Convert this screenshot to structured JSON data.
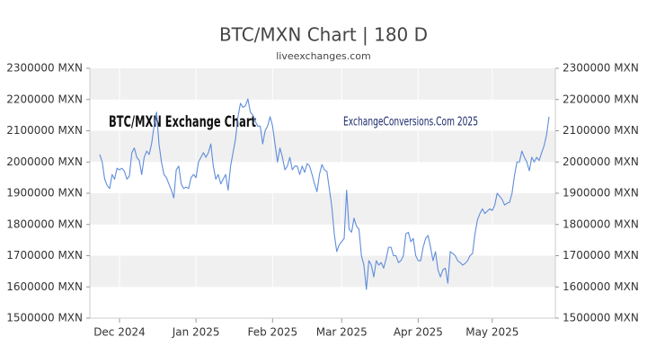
{
  "chart_data": {
    "type": "line",
    "title": "BTC/MXN Chart | 180 D",
    "subtitle": "liveexchanges.com",
    "annotations": [
      "BTC/MXN Exchange Chart",
      "ExchangeConversions.Com 2025"
    ],
    "color": "#5f8ddb",
    "grid": true,
    "categories": [
      null,
      null,
      null,
      null,
      null,
      null,
      null,
      null,
      "Dec 2024",
      null,
      null,
      null,
      null,
      null,
      null,
      null,
      null,
      null,
      null,
      null,
      null,
      null,
      null,
      null,
      null,
      null,
      null,
      null,
      null,
      null,
      null,
      null,
      null,
      null,
      null,
      null,
      null,
      null,
      null,
      "Jan 2025",
      null,
      null,
      null,
      null,
      null,
      null,
      null,
      null,
      null,
      null,
      null,
      null,
      null,
      null,
      null,
      null,
      null,
      null,
      null,
      null,
      null,
      null,
      null,
      null,
      null,
      null,
      null,
      null,
      null,
      null,
      "Feb 2025",
      null,
      null,
      null,
      null,
      null,
      null,
      null,
      null,
      null,
      null,
      null,
      null,
      null,
      null,
      null,
      null,
      null,
      null,
      null,
      null,
      null,
      null,
      null,
      null,
      null,
      null,
      null,
      "Mar 2025",
      null,
      null,
      null,
      null,
      null,
      null,
      null,
      null,
      null,
      null,
      null,
      null,
      null,
      null,
      null,
      null,
      null,
      null,
      null,
      null,
      null,
      null,
      null,
      null,
      null,
      null,
      null,
      null,
      null,
      null,
      "Apr 2025",
      null,
      null,
      null,
      null,
      null,
      null,
      null,
      null,
      null,
      null,
      null,
      null,
      null,
      null,
      null,
      null,
      null,
      null,
      null,
      null,
      null,
      null,
      null,
      null,
      null,
      null,
      null,
      null,
      null,
      "May 2025",
      null,
      null,
      null,
      null,
      null,
      null,
      null,
      null,
      null,
      null,
      null,
      null,
      null,
      null,
      null,
      null,
      null,
      null,
      null,
      null,
      null,
      null,
      null
    ],
    "values": [
      2024000,
      2000000,
      1945000,
      1925000,
      1915000,
      1960000,
      1945000,
      1980000,
      1975000,
      1980000,
      1970000,
      1945000,
      1955000,
      2030000,
      2045000,
      2015000,
      2005000,
      1960000,
      2015000,
      2035000,
      2024000,
      2058000,
      2115000,
      2160000,
      2058000,
      2000000,
      1960000,
      1950000,
      1930000,
      1910000,
      1885000,
      1975000,
      1987000,
      1930000,
      1915000,
      1920000,
      1915000,
      1950000,
      1960000,
      1950000,
      2000000,
      2015000,
      2030000,
      2015000,
      2030000,
      2058000,
      1987000,
      1945000,
      1960000,
      1930000,
      1945000,
      1960000,
      1910000,
      1987000,
      2030000,
      2073000,
      2145000,
      2188000,
      2175000,
      2180000,
      2202000,
      2160000,
      2150000,
      2130000,
      2115000,
      2115000,
      2058000,
      2100000,
      2115000,
      2145000,
      2115000,
      2058000,
      2000000,
      2045000,
      2015000,
      1975000,
      1987000,
      2015000,
      1975000,
      1987000,
      1987000,
      1960000,
      1987000,
      1967000,
      1995000,
      1987000,
      1960000,
      1930000,
      1905000,
      1960000,
      1992000,
      1975000,
      1970000,
      1915000,
      1857000,
      1770000,
      1713000,
      1735000,
      1745000,
      1755000,
      1910000,
      1785000,
      1775000,
      1820000,
      1795000,
      1785000,
      1700000,
      1670000,
      1592000,
      1684000,
      1670000,
      1632000,
      1684000,
      1670000,
      1678000,
      1660000,
      1690000,
      1727000,
      1727000,
      1700000,
      1700000,
      1678000,
      1684000,
      1700000,
      1770000,
      1775000,
      1745000,
      1755000,
      1700000,
      1684000,
      1684000,
      1727000,
      1755000,
      1765000,
      1727000,
      1684000,
      1713000,
      1655000,
      1632000,
      1655000,
      1660000,
      1612000,
      1713000,
      1707000,
      1700000,
      1684000,
      1678000,
      1670000,
      1675000,
      1684000,
      1700000,
      1707000,
      1770000,
      1815000,
      1835000,
      1850000,
      1835000,
      1843000,
      1850000,
      1845000,
      1862000,
      1900000,
      1890000,
      1880000,
      1862000,
      1868000,
      1871000,
      1900000,
      1957000,
      2000000,
      2000000,
      2035000,
      2015000,
      2000000,
      1972000,
      2015000,
      2000000,
      2015000,
      2005000,
      2030000,
      2052000,
      2087000,
      2145000
    ],
    "ylim": [
      1500000,
      2300000
    ],
    "yticks": [
      {
        "value": 1500000,
        "label": "1500000 MXN"
      },
      {
        "value": 1600000,
        "label": "1600000 MXN"
      },
      {
        "value": 1700000,
        "label": "1700000 MXN"
      },
      {
        "value": 1800000,
        "label": "1800000 MXN"
      },
      {
        "value": 1900000,
        "label": "1900000 MXN"
      },
      {
        "value": 2000000,
        "label": "2000000 MXN"
      },
      {
        "value": 2100000,
        "label": "2100000 MXN"
      },
      {
        "value": 2200000,
        "label": "2200000 MXN"
      },
      {
        "value": 2300000,
        "label": "2300000 MXN"
      }
    ],
    "y2lim": [
      1500000,
      2300000
    ],
    "y2ticks": [
      {
        "value": 1500000,
        "label": "1500000 MXN"
      },
      {
        "value": 1600000,
        "label": "1600000 MXN"
      },
      {
        "value": 1700000,
        "label": "1700000 MXN"
      },
      {
        "value": 1800000,
        "label": "1800000 MXN"
      },
      {
        "value": 1900000,
        "label": "1900000 MXN"
      },
      {
        "value": 2000000,
        "label": "2000000 MXN"
      },
      {
        "value": 2100000,
        "label": "2100000 MXN"
      },
      {
        "value": 2200000,
        "label": "2200000 MXN"
      },
      {
        "value": 2300000,
        "label": "2300000 MXN"
      }
    ]
  }
}
